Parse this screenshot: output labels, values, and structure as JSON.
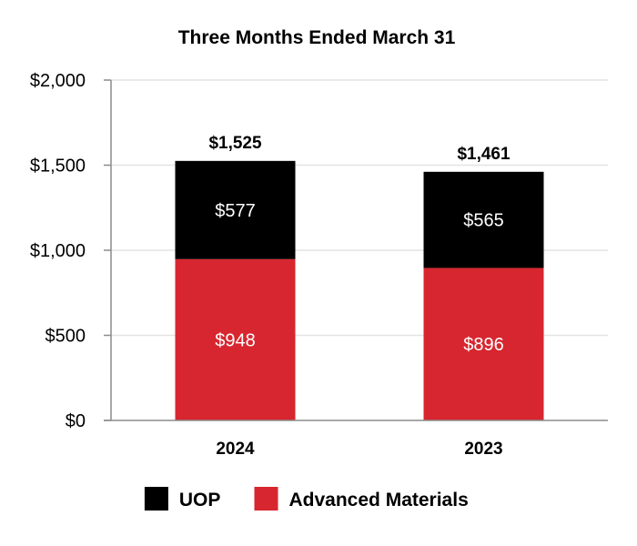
{
  "chart_data": {
    "type": "bar",
    "stacked": true,
    "title": "Three Months Ended March 31",
    "categories": [
      "2024",
      "2023"
    ],
    "series": [
      {
        "name": "Advanced Materials",
        "values": [
          948,
          896
        ],
        "labels": [
          "$948",
          "$896"
        ],
        "color": "#d7262f"
      },
      {
        "name": "UOP",
        "values": [
          577,
          565
        ],
        "labels": [
          "$577",
          "$565"
        ],
        "color": "#000000"
      }
    ],
    "totals": [
      1525,
      1461
    ],
    "total_labels": [
      "$1,525",
      "$1,461"
    ],
    "ylim": [
      0,
      2000
    ],
    "yticks": [
      0,
      500,
      1000,
      1500,
      2000
    ],
    "ytick_labels": [
      "$0",
      "$500",
      "$1,000",
      "$1,500",
      "$2,000"
    ],
    "grid": true,
    "legend_position": "bottom",
    "legend": [
      {
        "name": "UOP",
        "color": "#000000"
      },
      {
        "name": "Advanced Materials",
        "color": "#d7262f"
      }
    ]
  }
}
